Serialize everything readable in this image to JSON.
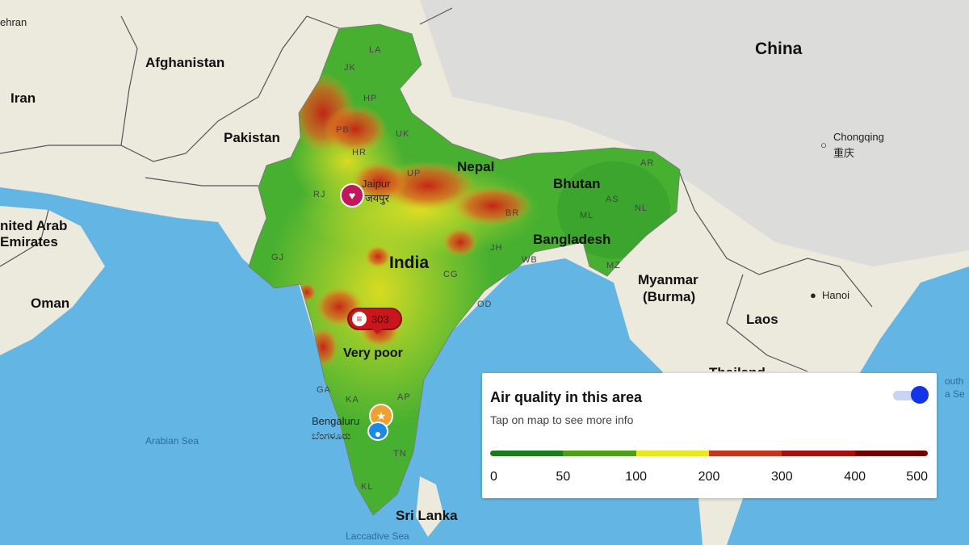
{
  "map": {
    "countries": [
      "Afghanistan",
      "Iran",
      "Pakistan",
      "China",
      "Nepal",
      "Bhutan",
      "Bangladesh",
      "India",
      "Myanmar",
      "(Burma)",
      "Laos",
      "Oman",
      "Sri Lanka",
      "nited Arab",
      "Emirates",
      "Thailand"
    ],
    "state_codes": [
      "LA",
      "JK",
      "HP",
      "PB",
      "UK",
      "HR",
      "UP",
      "RJ",
      "AR",
      "AS",
      "NL",
      "ML",
      "BR",
      "JH",
      "WB",
      "MZ",
      "GJ",
      "CG",
      "OD",
      "GA",
      "KA",
      "AP",
      "TN",
      "KL"
    ],
    "cities": {
      "jaipur": "Jaipur",
      "jaipur_local": "जयपुर",
      "bengaluru": "Bengaluru",
      "bengaluru_local": "ಬೆಂಗಳೂರು",
      "chongqing": "Chongqing",
      "chongqing_local": "重庆",
      "hanoi": "Hanoi",
      "tehran": "ehran"
    },
    "seas": {
      "arabian": "Arabian Sea",
      "laccadive": "Laccadive Sea",
      "south_china_1": "outh",
      "south_china_2": "a Se"
    }
  },
  "aqi_marker": {
    "value": "303",
    "category": "Very poor",
    "icon": "air-lines-icon",
    "color": "#c8161c"
  },
  "pins": [
    {
      "icon": "heart-icon",
      "color": "#c2185b"
    },
    {
      "icon": "star-icon",
      "color": "#f0a030"
    },
    {
      "icon": "location-icon",
      "color": "#1e88e5"
    }
  ],
  "panel": {
    "title": "Air quality in this area",
    "subtitle": "Tap on map to see more info",
    "toggle_on": true,
    "scale_colors": [
      "#1e7a1e",
      "#4f9e1a",
      "#e8e81e",
      "#c8321e",
      "#a80e0e",
      "#6e0000"
    ],
    "ticks": [
      "0",
      "50",
      "100",
      "200",
      "300",
      "400",
      "500"
    ]
  }
}
